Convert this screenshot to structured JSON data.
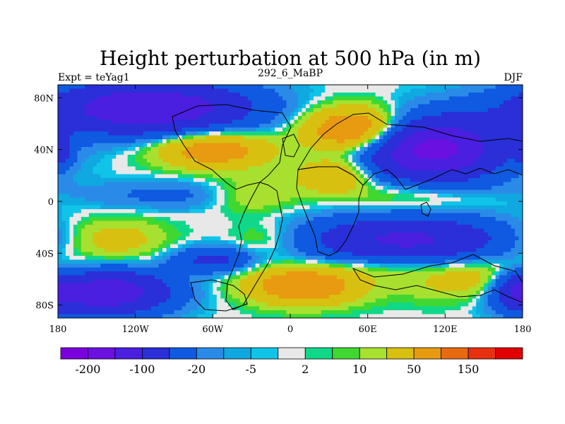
{
  "chart_data": {
    "type": "heatmap",
    "title": "Height perturbation at 500 hPa (in m)",
    "left_label": "Expt = teYag1",
    "center_label": "292_6_MaBP",
    "right_label": "DJF",
    "x_ticks": [
      {
        "value": -180,
        "label": "180"
      },
      {
        "value": -120,
        "label": "120W"
      },
      {
        "value": -60,
        "label": "60W"
      },
      {
        "value": 0,
        "label": "0"
      },
      {
        "value": 60,
        "label": "60E"
      },
      {
        "value": 120,
        "label": "120E"
      },
      {
        "value": 180,
        "label": "180"
      }
    ],
    "y_ticks": [
      {
        "value": 80,
        "label": "80N"
      },
      {
        "value": 40,
        "label": "40N"
      },
      {
        "value": 0,
        "label": "0"
      },
      {
        "value": -40,
        "label": "40S"
      },
      {
        "value": -80,
        "label": "80S"
      }
    ],
    "xlim": [
      -180,
      180
    ],
    "ylim": [
      -90,
      90
    ],
    "levels": [
      -200,
      -150,
      -100,
      -50,
      -20,
      -10,
      -5,
      -2,
      2,
      5,
      10,
      20,
      50,
      100,
      150,
      200
    ],
    "colorbar_labels": [
      {
        "after_level": 0,
        "label": "-200"
      },
      {
        "after_level": 2,
        "label": "-100"
      },
      {
        "after_level": 4,
        "label": "-20"
      },
      {
        "after_level": 6,
        "label": "-5"
      },
      {
        "after_level": 8,
        "label": "2"
      },
      {
        "after_level": 10,
        "label": "10"
      },
      {
        "after_level": 12,
        "label": "50"
      },
      {
        "after_level": 14,
        "label": "150"
      }
    ],
    "colors": [
      "#7a00dd",
      "#6a10e0",
      "#4a1fe0",
      "#2a2fd8",
      "#0f5ae0",
      "#2a8ae8",
      "#10a8e0",
      "#10c4e8",
      "#e8e8e8",
      "#10d888",
      "#40d830",
      "#a8e030",
      "#d8c010",
      "#e89a10",
      "#e86a10",
      "#e83010",
      "#e00000"
    ],
    "anomalies": [
      {
        "lon": -110,
        "lat": 72,
        "value": -150,
        "sx": 55,
        "sy": 14
      },
      {
        "lon": -60,
        "lat": 40,
        "value": 80,
        "sx": 30,
        "sy": 10
      },
      {
        "lon": 110,
        "lat": 40,
        "value": -170,
        "sx": 38,
        "sy": 17
      },
      {
        "lon": 50,
        "lat": 55,
        "value": 110,
        "sx": 26,
        "sy": 12
      },
      {
        "lon": 35,
        "lat": 20,
        "value": 55,
        "sx": 20,
        "sy": 9
      },
      {
        "lon": -120,
        "lat": 5,
        "value": -18,
        "sx": 40,
        "sy": 8
      },
      {
        "lon": -30,
        "lat": 5,
        "value": 20,
        "sx": 25,
        "sy": 10
      },
      {
        "lon": -80,
        "lat": 5,
        "value": -14,
        "sx": 25,
        "sy": 8
      },
      {
        "lon": 100,
        "lat": 5,
        "value": 25,
        "sx": 40,
        "sy": 8
      },
      {
        "lon": 140,
        "lat": 10,
        "value": -8,
        "sx": 30,
        "sy": 6
      },
      {
        "lon": 90,
        "lat": -30,
        "value": -110,
        "sx": 55,
        "sy": 13
      },
      {
        "lon": 70,
        "lat": -50,
        "value": 20,
        "sx": 30,
        "sy": 7
      },
      {
        "lon": -140,
        "lat": -30,
        "value": 35,
        "sx": 30,
        "sy": 12
      },
      {
        "lon": -60,
        "lat": -45,
        "value": -60,
        "sx": 22,
        "sy": 7
      },
      {
        "lon": -20,
        "lat": -30,
        "value": 20,
        "sx": 20,
        "sy": 10
      },
      {
        "lon": -145,
        "lat": -70,
        "value": -150,
        "sx": 35,
        "sy": 12
      },
      {
        "lon": 10,
        "lat": -65,
        "value": 90,
        "sx": 30,
        "sy": 10
      },
      {
        "lon": 150,
        "lat": -60,
        "value": 45,
        "sx": 40,
        "sy": 12
      },
      {
        "lon": 175,
        "lat": -68,
        "value": -70,
        "sx": 12,
        "sy": 10
      },
      {
        "lon": -178,
        "lat": 40,
        "value": -60,
        "sx": 6,
        "sy": 8
      }
    ]
  }
}
